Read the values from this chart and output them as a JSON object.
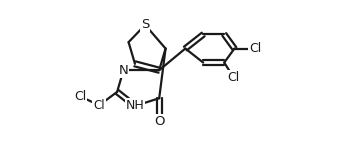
{
  "bg": "#ffffff",
  "lc": "#1a1a1a",
  "lw": 1.6,
  "fs": 8.5,
  "xlim": [
    -0.22,
    1.45
  ],
  "ylim": [
    -0.2,
    1.02
  ],
  "figsize": [
    3.49,
    1.57
  ],
  "dpi": 100
}
